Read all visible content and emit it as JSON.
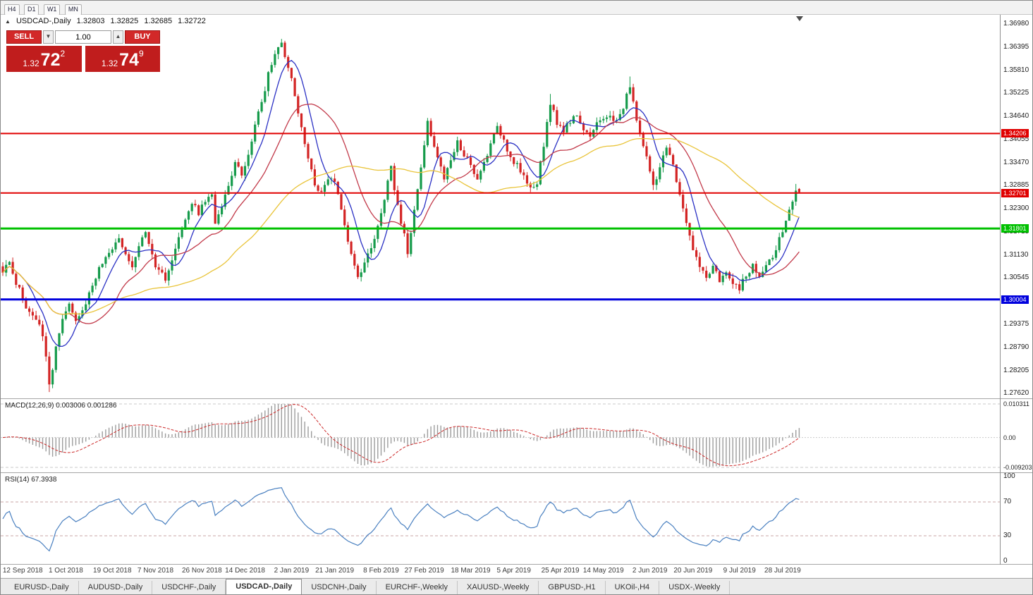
{
  "toolbar": {
    "timeframes": [
      "H4",
      "D1",
      "W1",
      "MN"
    ]
  },
  "icons": {
    "collapse_triangle": "▲",
    "volume_decrease": "▼",
    "volume_increase": "▲"
  },
  "header": {
    "symbol_period": "USDCAD-,Daily",
    "open": "1.32803",
    "high": "1.32825",
    "low": "1.32685",
    "close": "1.32722"
  },
  "trade_panel": {
    "sell_label": "SELL",
    "buy_label": "BUY",
    "volume": "1.00",
    "sell_price": {
      "prefix": "1.32",
      "pips": "72",
      "point": "2"
    },
    "buy_price": {
      "prefix": "1.32",
      "pips": "74",
      "point": "9"
    }
  },
  "chart_data": {
    "type": "candlestick",
    "symbol": "USDCAD",
    "period": "Daily",
    "bars_total": 241,
    "last_ohlc": {
      "open": 1.32803,
      "high": 1.32825,
      "low": 1.32685,
      "close": 1.32722
    },
    "price_axis": {
      "top_value": 1.3698,
      "tick_step": 0.00585,
      "ticks": [
        "1.36980",
        "1.36395",
        "1.35810",
        "1.35225",
        "1.34640",
        "1.34055",
        "1.33470",
        "1.32885",
        "1.32300",
        "1.31715",
        "1.31130",
        "1.30545",
        "1.29960",
        "1.29375",
        "1.28790",
        "1.28205",
        "1.27620"
      ]
    },
    "levels": [
      {
        "value": 1.34206,
        "label": "1.34206",
        "color": "#e00000",
        "width": 2,
        "type": "resistance"
      },
      {
        "value": 1.32701,
        "label": "1.32701",
        "color": "#e00000",
        "width": 2,
        "type": "resistance"
      },
      {
        "value": 1.31801,
        "label": "1.31801",
        "color": "#00c000",
        "width": 3,
        "type": "support"
      },
      {
        "value": 1.30004,
        "label": "1.30004",
        "color": "#0000dd",
        "width": 3,
        "type": "support"
      }
    ],
    "date_axis": [
      {
        "bar": 6,
        "label": "12 Sep 2018"
      },
      {
        "bar": 19,
        "label": "1 Oct 2018"
      },
      {
        "bar": 33,
        "label": "19 Oct 2018"
      },
      {
        "bar": 46,
        "label": "7 Nov 2018"
      },
      {
        "bar": 60,
        "label": "26 Nov 2018"
      },
      {
        "bar": 73,
        "label": "14 Dec 2018"
      },
      {
        "bar": 87,
        "label": "2 Jan 2019"
      },
      {
        "bar": 100,
        "label": "21 Jan 2019"
      },
      {
        "bar": 114,
        "label": "8 Feb 2019"
      },
      {
        "bar": 127,
        "label": "27 Feb 2019"
      },
      {
        "bar": 141,
        "label": "18 Mar 2019"
      },
      {
        "bar": 154,
        "label": "5 Apr 2019"
      },
      {
        "bar": 168,
        "label": "25 Apr 2019"
      },
      {
        "bar": 181,
        "label": "14 May 2019"
      },
      {
        "bar": 195,
        "label": "2 Jun 2019"
      },
      {
        "bar": 208,
        "label": "20 Jun 2019"
      },
      {
        "bar": 222,
        "label": "9 Jul 2019"
      },
      {
        "bar": 235,
        "label": "28 Jul 2019"
      }
    ],
    "price_path_anchors": [
      [
        0,
        1.3075
      ],
      [
        2,
        1.309
      ],
      [
        4,
        1.3045
      ],
      [
        6,
        1.3
      ],
      [
        8,
        1.297
      ],
      [
        10,
        1.2945
      ],
      [
        12,
        1.2915
      ],
      [
        13,
        1.286
      ],
      [
        14,
        1.279
      ],
      [
        15,
        1.2825
      ],
      [
        16,
        1.2875
      ],
      [
        18,
        1.2945
      ],
      [
        20,
        1.2985
      ],
      [
        22,
        1.295
      ],
      [
        24,
        1.2975
      ],
      [
        26,
        1.3015
      ],
      [
        28,
        1.3055
      ],
      [
        30,
        1.3095
      ],
      [
        33,
        1.313
      ],
      [
        35,
        1.316
      ],
      [
        37,
        1.312
      ],
      [
        39,
        1.309
      ],
      [
        41,
        1.314
      ],
      [
        43,
        1.317
      ],
      [
        45,
        1.311
      ],
      [
        47,
        1.307
      ],
      [
        49,
        1.3055
      ],
      [
        51,
        1.31
      ],
      [
        53,
        1.315
      ],
      [
        55,
        1.32
      ],
      [
        57,
        1.3245
      ],
      [
        59,
        1.322
      ],
      [
        61,
        1.325
      ],
      [
        63,
        1.3265
      ],
      [
        64,
        1.319
      ],
      [
        66,
        1.323
      ],
      [
        68,
        1.3295
      ],
      [
        70,
        1.3345
      ],
      [
        72,
        1.3315
      ],
      [
        74,
        1.3365
      ],
      [
        76,
        1.344
      ],
      [
        78,
        1.35
      ],
      [
        80,
        1.357
      ],
      [
        82,
        1.363
      ],
      [
        84,
        1.365
      ],
      [
        86,
        1.359
      ],
      [
        88,
        1.352
      ],
      [
        90,
        1.344
      ],
      [
        92,
        1.336
      ],
      [
        94,
        1.329
      ],
      [
        96,
        1.327
      ],
      [
        98,
        1.331
      ],
      [
        100,
        1.329
      ],
      [
        102,
        1.323
      ],
      [
        104,
        1.315
      ],
      [
        106,
        1.308
      ],
      [
        107,
        1.305
      ],
      [
        109,
        1.309
      ],
      [
        111,
        1.313
      ],
      [
        113,
        1.319
      ],
      [
        115,
        1.326
      ],
      [
        117,
        1.333
      ],
      [
        119,
        1.324
      ],
      [
        121,
        1.316
      ],
      [
        122,
        1.3115
      ],
      [
        124,
        1.322
      ],
      [
        126,
        1.333
      ],
      [
        128,
        1.3445
      ],
      [
        130,
        1.339
      ],
      [
        133,
        1.331
      ],
      [
        135,
        1.335
      ],
      [
        137,
        1.3395
      ],
      [
        139,
        1.337
      ],
      [
        141,
        1.334
      ],
      [
        143,
        1.331
      ],
      [
        145,
        1.3345
      ],
      [
        147,
        1.339
      ],
      [
        149,
        1.3435
      ],
      [
        151,
        1.34
      ],
      [
        153,
        1.336
      ],
      [
        155,
        1.334
      ],
      [
        157,
        1.332
      ],
      [
        159,
        1.3285
      ],
      [
        161,
        1.33
      ],
      [
        163,
        1.339
      ],
      [
        165,
        1.35
      ],
      [
        167,
        1.345
      ],
      [
        169,
        1.343
      ],
      [
        171,
        1.345
      ],
      [
        173,
        1.3465
      ],
      [
        175,
        1.343
      ],
      [
        177,
        1.3415
      ],
      [
        179,
        1.3445
      ],
      [
        181,
        1.3455
      ],
      [
        183,
        1.347
      ],
      [
        185,
        1.345
      ],
      [
        187,
        1.349
      ],
      [
        189,
        1.354
      ],
      [
        191,
        1.346
      ],
      [
        193,
        1.339
      ],
      [
        195,
        1.333
      ],
      [
        196,
        1.329
      ],
      [
        198,
        1.333
      ],
      [
        200,
        1.3385
      ],
      [
        202,
        1.334
      ],
      [
        204,
        1.327
      ],
      [
        206,
        1.319
      ],
      [
        208,
        1.313
      ],
      [
        210,
        1.3085
      ],
      [
        212,
        1.306
      ],
      [
        214,
        1.308
      ],
      [
        216,
        1.305
      ],
      [
        218,
        1.3075
      ],
      [
        220,
        1.3045
      ],
      [
        222,
        1.303
      ],
      [
        224,
        1.306
      ],
      [
        226,
        1.3085
      ],
      [
        228,
        1.3055
      ],
      [
        230,
        1.308
      ],
      [
        232,
        1.311
      ],
      [
        234,
        1.315
      ],
      [
        236,
        1.3195
      ],
      [
        237,
        1.3225
      ],
      [
        238,
        1.3245
      ],
      [
        239,
        1.328
      ],
      [
        240,
        1.32722
      ]
    ],
    "extremes": [
      {
        "bar": 14,
        "type": "low",
        "value": 1.2766
      },
      {
        "bar": 84,
        "type": "high",
        "value": 1.3658
      },
      {
        "bar": 128,
        "type": "high",
        "value": 1.346
      },
      {
        "bar": 165,
        "type": "high",
        "value": 1.3521
      },
      {
        "bar": 189,
        "type": "high",
        "value": 1.3565
      },
      {
        "bar": 222,
        "type": "low",
        "value": 1.3018
      },
      {
        "bar": 239,
        "type": "high",
        "value": 1.3293
      }
    ],
    "moving_averages": [
      {
        "period": 8,
        "color": "#2b31c4"
      },
      {
        "period": 21,
        "color": "#c23a4a"
      },
      {
        "period": 55,
        "color": "#e9c43a"
      }
    ],
    "indicators": {
      "macd": {
        "display": "MACD(12,26,9) 0.003006 0.001286",
        "name": "MACD(12,26,9)",
        "main_value": 0.003006,
        "signal_value": 0.001286,
        "axis": {
          "max": 0.010311,
          "zero": 0.0,
          "min": -0.009203,
          "tick_labels": [
            "0.010311",
            "0.00",
            "-0.009203"
          ]
        }
      },
      "rsi": {
        "display": "RSI(14) 67.3938",
        "name": "RSI(14)",
        "value": 67.3938,
        "axis_ticks": [
          "100",
          "70",
          "30",
          "0"
        ],
        "levels": [
          70,
          30
        ]
      }
    },
    "colors": {
      "bull": "#169b4b",
      "bear": "#d32424",
      "ma_fast": "#2b31c4",
      "ma_mid": "#c23a4a",
      "ma_slow": "#e9c43a",
      "macd_hist": "#9c9c9c",
      "macd_signal": "#cc2929",
      "rsi_line": "#4a80c0",
      "level_red": "#e00000",
      "level_green": "#00c000",
      "level_blue": "#0000dd",
      "sell_buy_button": "#d22828",
      "price_box": "#c01d1d"
    }
  },
  "bottom_tabs": {
    "active_index": 3,
    "tabs": [
      "EURUSD-,Daily",
      "AUDUSD-,Daily",
      "USDCHF-,Daily",
      "USDCAD-,Daily",
      "USDCNH-,Daily",
      "EURCHF-,Weekly",
      "XAUUSD-,Weekly",
      "GBPUSD-,H1",
      "UKOil-,H4",
      "USDX-,Weekly"
    ]
  }
}
